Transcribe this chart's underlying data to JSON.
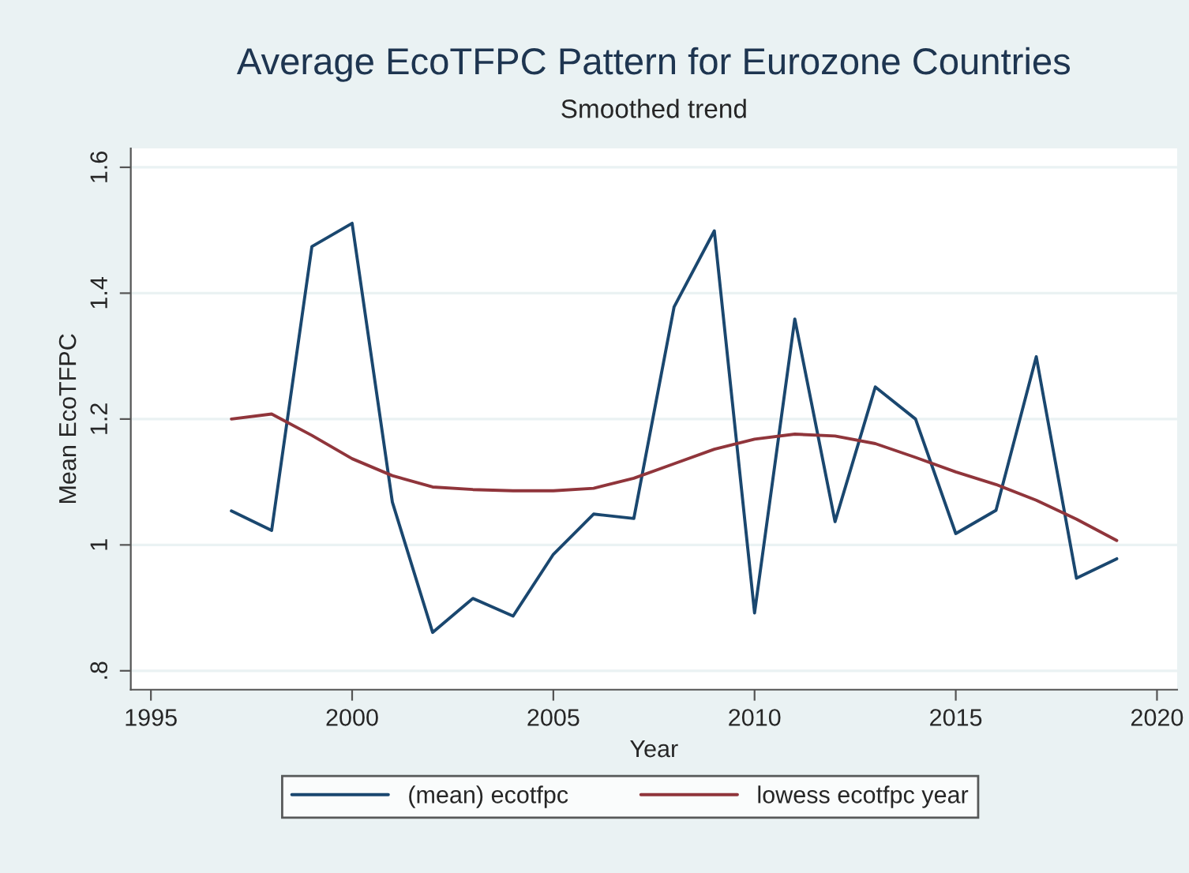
{
  "chart_data": {
    "type": "line",
    "title": "Average EcoTFPC Pattern for Eurozone Countries",
    "subtitle": "Smoothed trend",
    "xlabel": "Year",
    "ylabel": "Mean EcoTFPC",
    "x": [
      1997,
      1998,
      1999,
      2000,
      2001,
      2002,
      2003,
      2004,
      2005,
      2006,
      2007,
      2008,
      2009,
      2010,
      2011,
      2012,
      2013,
      2014,
      2015,
      2016,
      2017,
      2018,
      2019
    ],
    "series": [
      {
        "name": "(mean) ecotfpc",
        "color": "#1a476f",
        "values": [
          1.054,
          1.023,
          1.474,
          1.511,
          1.068,
          0.861,
          0.915,
          0.887,
          0.985,
          1.049,
          1.042,
          1.378,
          1.499,
          0.892,
          1.359,
          1.037,
          1.251,
          1.2,
          1.018,
          1.055,
          1.299,
          0.947,
          0.978
        ]
      },
      {
        "name": "lowess ecotfpc year",
        "color": "#90353b",
        "values": [
          1.2,
          1.208,
          1.174,
          1.137,
          1.11,
          1.092,
          1.088,
          1.086,
          1.086,
          1.09,
          1.106,
          1.129,
          1.152,
          1.168,
          1.176,
          1.173,
          1.161,
          1.139,
          1.116,
          1.096,
          1.071,
          1.041,
          1.007
        ]
      }
    ],
    "xlim": [
      1994.5,
      2020.5
    ],
    "xticks": [
      1995,
      2000,
      2005,
      2010,
      2015,
      2020
    ],
    "ylim": [
      0.77,
      1.63
    ],
    "yticks": [
      {
        "value": 0.8,
        "label": ".8"
      },
      1,
      1.2,
      1.4,
      1.6
    ],
    "grid": "y",
    "legend": "bottom",
    "marker": "none",
    "line_style": "solid"
  }
}
